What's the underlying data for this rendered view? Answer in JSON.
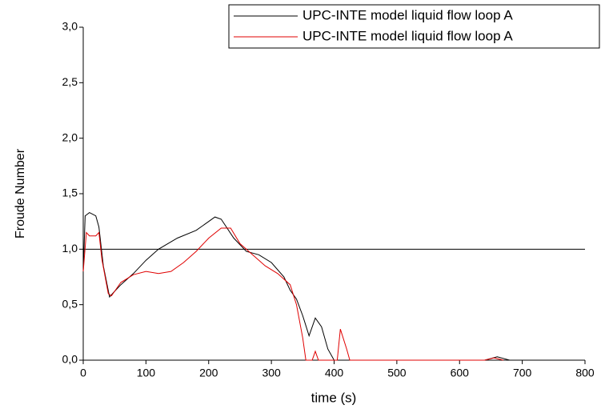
{
  "chart_data": {
    "type": "line",
    "x_label": "time (s)",
    "y_label": "Froude Number",
    "xlim": [
      0,
      800
    ],
    "xticks": [
      0,
      100,
      200,
      300,
      400,
      500,
      600,
      700,
      800
    ],
    "ylim": [
      0,
      3
    ],
    "yticks": [
      {
        "value": 0,
        "label": "0,0"
      },
      {
        "value": 0.5,
        "label": "0,5"
      },
      {
        "value": 1,
        "label": "1,0"
      },
      {
        "value": 1.5,
        "label": "1,5"
      },
      {
        "value": 2,
        "label": "2,0"
      },
      {
        "value": 2.5,
        "label": "2,5"
      },
      {
        "value": 3,
        "label": "3,0"
      }
    ],
    "reference_line": 1,
    "legend": "top-right",
    "series": [
      {
        "name": "UPC-INTE model liquid flow loop A",
        "color": "#000000",
        "x": [
          0,
          3,
          10,
          20,
          25,
          32,
          42,
          50,
          60,
          80,
          100,
          120,
          150,
          180,
          200,
          210,
          220,
          240,
          260,
          280,
          300,
          320,
          330,
          340,
          350,
          360,
          370,
          380,
          390,
          400,
          640,
          660,
          680
        ],
        "values": [
          0.8,
          1.3,
          1.33,
          1.3,
          1.2,
          0.85,
          0.57,
          0.62,
          0.68,
          0.78,
          0.9,
          1.0,
          1.1,
          1.17,
          1.25,
          1.29,
          1.27,
          1.1,
          0.98,
          0.95,
          0.88,
          0.75,
          0.63,
          0.55,
          0.4,
          0.22,
          0.38,
          0.3,
          0.1,
          0.0,
          0.0,
          0.03,
          0.0
        ]
      },
      {
        "name": "UPC-INTE model liquid flow loop A",
        "color": "#e00000",
        "x": [
          0,
          5,
          10,
          20,
          25,
          30,
          40,
          45,
          60,
          80,
          100,
          120,
          140,
          160,
          180,
          200,
          220,
          235,
          250,
          270,
          290,
          310,
          330,
          340,
          350,
          355,
          365,
          370,
          375,
          405,
          410,
          420,
          425,
          640,
          655,
          670
        ],
        "values": [
          0.8,
          1.15,
          1.12,
          1.12,
          1.15,
          0.9,
          0.6,
          0.58,
          0.7,
          0.77,
          0.8,
          0.78,
          0.8,
          0.88,
          0.98,
          1.1,
          1.19,
          1.19,
          1.05,
          0.95,
          0.85,
          0.78,
          0.68,
          0.5,
          0.2,
          0.0,
          0.0,
          0.08,
          0.0,
          0.0,
          0.28,
          0.1,
          0.0,
          0.0,
          0.02,
          0.0
        ]
      }
    ]
  }
}
